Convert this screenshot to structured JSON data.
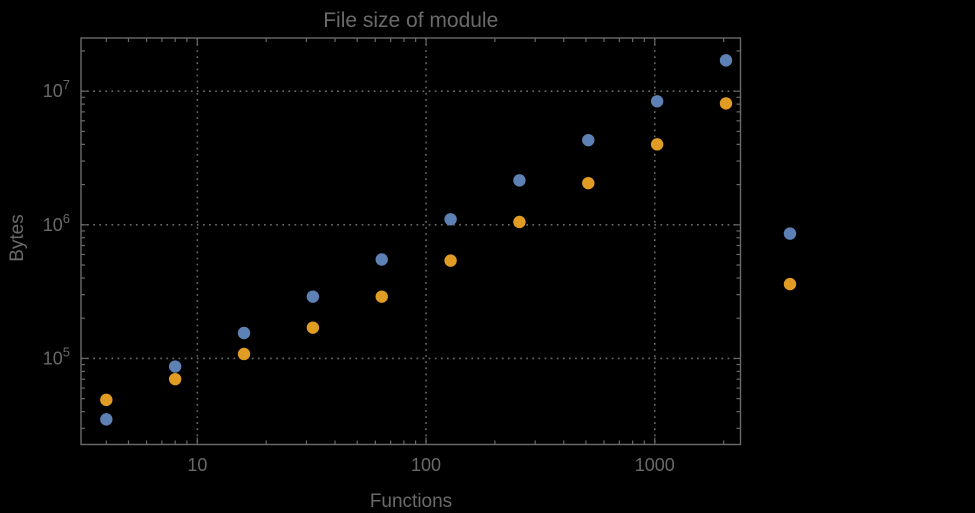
{
  "chart_data": {
    "type": "scatter",
    "title": "File size of module",
    "xlabel": "Functions",
    "ylabel": "Bytes",
    "x_scale": "log",
    "y_scale": "log",
    "xlim": [
      3.1,
      2370
    ],
    "ylim": [
      22700,
      25000000
    ],
    "grid": "dotted at major ticks",
    "legend": "none",
    "x_major_ticks": [
      {
        "value": 10,
        "label": "10"
      },
      {
        "value": 100,
        "label": "100"
      },
      {
        "value": 1000,
        "label": "1000"
      }
    ],
    "x_minor_ticks": [
      4,
      5,
      6,
      7,
      8,
      9,
      20,
      30,
      40,
      50,
      60,
      70,
      80,
      90,
      200,
      300,
      400,
      500,
      600,
      700,
      800,
      900,
      2000
    ],
    "y_major_ticks": [
      {
        "value": 100000,
        "mantissa": "10",
        "exponent": "5"
      },
      {
        "value": 1000000,
        "mantissa": "10",
        "exponent": "6"
      },
      {
        "value": 10000000,
        "mantissa": "10",
        "exponent": "7"
      }
    ],
    "y_minor_ticks": [
      30000,
      40000,
      50000,
      60000,
      70000,
      80000,
      90000,
      200000,
      300000,
      400000,
      500000,
      600000,
      700000,
      800000,
      900000,
      2000000,
      3000000,
      4000000,
      5000000,
      6000000,
      7000000,
      8000000,
      9000000,
      20000000
    ],
    "note": "last pair of points lies outside the right edge of the plot frame",
    "series": [
      {
        "name": "blue",
        "color": "#5E81B5",
        "points": [
          [
            4,
            35000
          ],
          [
            8,
            87000
          ],
          [
            16,
            155000
          ],
          [
            32,
            290000
          ],
          [
            64,
            550000
          ],
          [
            128,
            1100000
          ],
          [
            256,
            2150000
          ],
          [
            512,
            4300000
          ],
          [
            1024,
            8400000
          ],
          [
            2048,
            17000000
          ],
          [
            3900,
            860000
          ]
        ]
      },
      {
        "name": "orange",
        "color": "#E19C24",
        "points": [
          [
            4,
            49000
          ],
          [
            8,
            70000
          ],
          [
            16,
            108000
          ],
          [
            32,
            170000
          ],
          [
            64,
            290000
          ],
          [
            128,
            540000
          ],
          [
            256,
            1050000
          ],
          [
            512,
            2050000
          ],
          [
            1024,
            4000000
          ],
          [
            2048,
            8100000
          ],
          [
            3900,
            360000
          ]
        ]
      }
    ]
  },
  "colors": {
    "background": "#000000",
    "frame": "#6a6a6a",
    "grid": "#6a6a6a",
    "text": "#6a6a6a"
  }
}
